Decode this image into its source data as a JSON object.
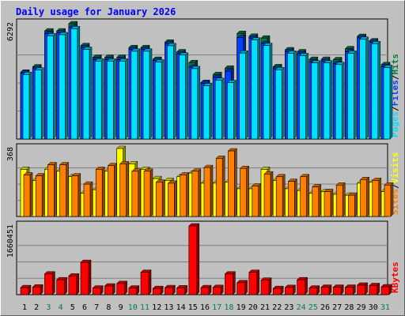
{
  "title": "Daily usage for January 2026",
  "colors": {
    "background": "#c0c0c0",
    "plot_bg": "#c0c0c0",
    "hits": "#008040",
    "files": "#0040ff",
    "pages": "#00e0ff",
    "visits": "#ffff00",
    "sites": "#ff8000",
    "kbytes": "#ff0000",
    "title": "#0000ff",
    "weekend_day": "#00804a",
    "weekday_day": "#000000"
  },
  "chart_data": [
    {
      "type": "bar",
      "panel": "hits-files-pages",
      "max_label": "6292",
      "ylim": [
        0,
        6292
      ],
      "legend": [
        "Pages",
        "Files",
        "Hits"
      ],
      "categories": [
        "1",
        "2",
        "3",
        "4",
        "5",
        "6",
        "7",
        "8",
        "9",
        "10",
        "11",
        "12",
        "13",
        "14",
        "15",
        "16",
        "17",
        "18",
        "19",
        "20",
        "21",
        "22",
        "23",
        "24",
        "25",
        "26",
        "27",
        "28",
        "29",
        "30",
        "31"
      ],
      "weekend": [
        "3",
        "4",
        "10",
        "11",
        "17",
        "18",
        "24",
        "25",
        "31"
      ],
      "series": [
        {
          "name": "Hits",
          "values": [
            3650,
            3940,
            5900,
            5900,
            6290,
            5100,
            4460,
            4460,
            4460,
            4990,
            4990,
            4350,
            5290,
            4760,
            4170,
            3090,
            3520,
            3870,
            5760,
            5610,
            5510,
            3950,
            4870,
            4760,
            4350,
            4350,
            4330,
            4930,
            5600,
            5360,
            4060
          ]
        },
        {
          "name": "Files",
          "values": [
            3600,
            3840,
            5740,
            5790,
            6080,
            4990,
            4330,
            4330,
            4330,
            4890,
            4890,
            4280,
            5190,
            4650,
            3920,
            3040,
            3360,
            3700,
            5530,
            5500,
            5210,
            3840,
            4760,
            4650,
            4210,
            4240,
            4120,
            4760,
            5520,
            5280,
            3950
          ]
        },
        {
          "name": "Pages",
          "values": [
            3520,
            3760,
            5630,
            5690,
            6020,
            4890,
            4250,
            4250,
            4250,
            4790,
            4790,
            4200,
            5090,
            4580,
            3840,
            2910,
            3200,
            3080,
            4690,
            5400,
            5100,
            3780,
            4680,
            4550,
            4150,
            4150,
            4060,
            4680,
            5440,
            5200,
            3900
          ]
        }
      ]
    },
    {
      "type": "bar",
      "panel": "visits-sites",
      "max_label": "368",
      "ylim": [
        0,
        368
      ],
      "legend": [
        "Sites",
        "Visits"
      ],
      "categories": [
        "1",
        "2",
        "3",
        "4",
        "5",
        "6",
        "7",
        "8",
        "9",
        "10",
        "11",
        "12",
        "13",
        "14",
        "15",
        "16",
        "17",
        "18",
        "19",
        "20",
        "21",
        "22",
        "23",
        "24",
        "25",
        "26",
        "27",
        "28",
        "29",
        "30",
        "31"
      ],
      "series": [
        {
          "name": "Visits",
          "values": [
            255,
            195,
            255,
            245,
            215,
            125,
            145,
            245,
            368,
            285,
            255,
            205,
            195,
            215,
            235,
            180,
            180,
            185,
            150,
            150,
            255,
            195,
            150,
            140,
            125,
            135,
            120,
            115,
            180,
            185,
            135
          ]
        },
        {
          "name": "Sites",
          "values": [
            225,
            220,
            280,
            280,
            220,
            175,
            255,
            275,
            285,
            245,
            245,
            185,
            180,
            225,
            245,
            265,
            315,
            355,
            260,
            165,
            230,
            215,
            190,
            215,
            160,
            135,
            170,
            115,
            200,
            195,
            170
          ]
        }
      ]
    },
    {
      "type": "bar",
      "panel": "kbytes",
      "max_label": "1660451",
      "ylim": [
        0,
        1660451
      ],
      "legend": [
        "KBytes"
      ],
      "categories": [
        "1",
        "2",
        "3",
        "4",
        "5",
        "6",
        "7",
        "8",
        "9",
        "10",
        "11",
        "12",
        "13",
        "14",
        "15",
        "16",
        "17",
        "18",
        "19",
        "20",
        "21",
        "22",
        "23",
        "24",
        "25",
        "26",
        "27",
        "28",
        "29",
        "30",
        "31"
      ],
      "series": [
        {
          "name": "KBytes",
          "values": [
            170000,
            185000,
            500000,
            360000,
            450000,
            780000,
            160000,
            210000,
            270000,
            160000,
            540000,
            150000,
            170000,
            165000,
            1660451,
            170000,
            175000,
            500000,
            290000,
            540000,
            350000,
            150000,
            175000,
            360000,
            160000,
            180000,
            180000,
            180000,
            230000,
            220000,
            190000
          ]
        }
      ]
    }
  ]
}
